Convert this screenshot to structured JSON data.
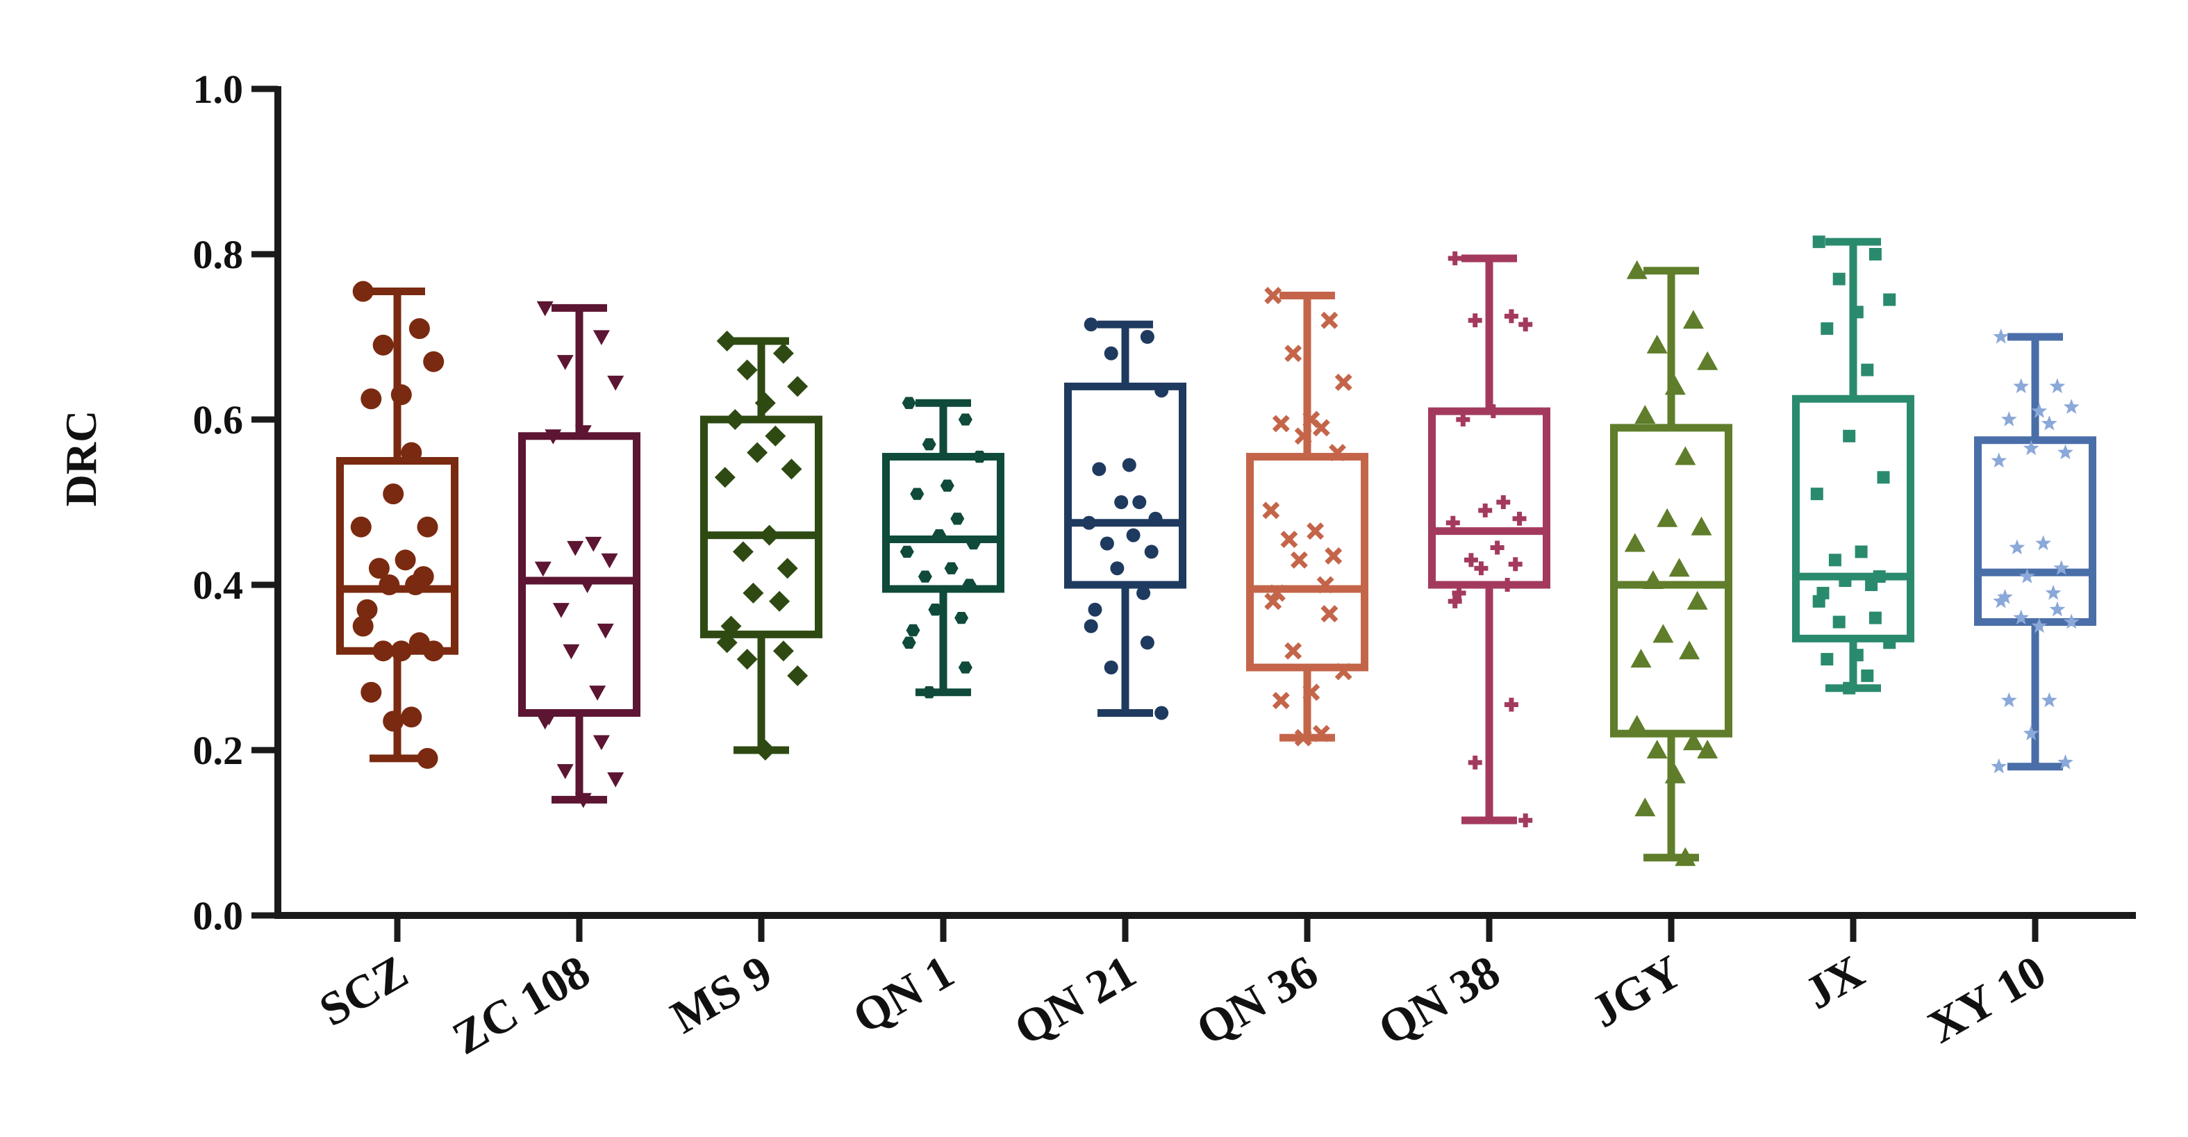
{
  "chart_data": {
    "type": "box",
    "ylabel": "DRC",
    "xlabel": "",
    "ylim": [
      0,
      1.0
    ],
    "yticks": [
      "0.0",
      "0.2",
      "0.4",
      "0.6",
      "0.8",
      "1.0"
    ],
    "ytick_values": [
      0.0,
      0.2,
      0.4,
      0.6,
      0.8,
      1.0
    ],
    "grid": false,
    "categories": [
      "SCZ",
      "ZC 108",
      "MS 9",
      "QN 1",
      "QN 21",
      "QN 36",
      "QN 38",
      "JGY",
      "JX",
      "XY 10"
    ],
    "series": [
      {
        "marker": "circle",
        "color": "#7a2a10",
        "min": 0.19,
        "q1": 0.32,
        "median": 0.395,
        "q3": 0.55,
        "max": 0.755,
        "points": [
          0.755,
          0.71,
          0.69,
          0.67,
          0.63,
          0.625,
          0.56,
          0.51,
          0.47,
          0.47,
          0.43,
          0.42,
          0.41,
          0.4,
          0.4,
          0.37,
          0.35,
          0.33,
          0.32,
          0.32,
          0.32,
          0.27,
          0.24,
          0.235,
          0.19
        ]
      },
      {
        "marker": "triangle-down",
        "color": "#5c1532",
        "min": 0.14,
        "q1": 0.245,
        "median": 0.405,
        "q3": 0.58,
        "max": 0.735,
        "points": [
          0.735,
          0.7,
          0.67,
          0.645,
          0.585,
          0.58,
          0.45,
          0.445,
          0.43,
          0.42,
          0.4,
          0.37,
          0.345,
          0.32,
          0.27,
          0.24,
          0.235,
          0.21,
          0.175,
          0.165,
          0.14
        ]
      },
      {
        "marker": "diamond",
        "color": "#2e4a12",
        "min": 0.2,
        "q1": 0.34,
        "median": 0.46,
        "q3": 0.6,
        "max": 0.695,
        "points": [
          0.695,
          0.68,
          0.66,
          0.64,
          0.62,
          0.6,
          0.58,
          0.56,
          0.54,
          0.53,
          0.46,
          0.44,
          0.42,
          0.39,
          0.38,
          0.35,
          0.33,
          0.32,
          0.31,
          0.29,
          0.2
        ]
      },
      {
        "marker": "hexagon",
        "color": "#0f4a3a",
        "min": 0.27,
        "q1": 0.395,
        "median": 0.455,
        "q3": 0.555,
        "max": 0.62,
        "points": [
          0.62,
          0.6,
          0.57,
          0.555,
          0.52,
          0.51,
          0.48,
          0.46,
          0.45,
          0.44,
          0.42,
          0.41,
          0.4,
          0.37,
          0.36,
          0.345,
          0.33,
          0.3,
          0.27
        ]
      },
      {
        "marker": "circle-small",
        "color": "#1f3a5f",
        "min": 0.245,
        "q1": 0.4,
        "median": 0.475,
        "q3": 0.64,
        "max": 0.715,
        "points": [
          0.715,
          0.7,
          0.68,
          0.635,
          0.545,
          0.54,
          0.5,
          0.5,
          0.48,
          0.475,
          0.46,
          0.45,
          0.44,
          0.42,
          0.39,
          0.37,
          0.35,
          0.33,
          0.3,
          0.245
        ]
      },
      {
        "marker": "x",
        "color": "#c4654a",
        "min": 0.215,
        "q1": 0.3,
        "median": 0.395,
        "q3": 0.555,
        "max": 0.75,
        "points": [
          0.75,
          0.72,
          0.68,
          0.645,
          0.6,
          0.595,
          0.59,
          0.58,
          0.56,
          0.49,
          0.465,
          0.455,
          0.435,
          0.43,
          0.4,
          0.39,
          0.38,
          0.365,
          0.32,
          0.295,
          0.27,
          0.26,
          0.22,
          0.215
        ]
      },
      {
        "marker": "plus",
        "color": "#a33a5e",
        "min": 0.115,
        "q1": 0.4,
        "median": 0.465,
        "q3": 0.61,
        "max": 0.795,
        "points": [
          0.795,
          0.725,
          0.72,
          0.715,
          0.61,
          0.6,
          0.5,
          0.49,
          0.48,
          0.475,
          0.445,
          0.43,
          0.425,
          0.42,
          0.4,
          0.39,
          0.38,
          0.255,
          0.185,
          0.115
        ]
      },
      {
        "marker": "triangle-up",
        "color": "#5f7d2a",
        "min": 0.07,
        "q1": 0.22,
        "median": 0.4,
        "q3": 0.59,
        "max": 0.78,
        "points": [
          0.78,
          0.72,
          0.69,
          0.67,
          0.64,
          0.605,
          0.555,
          0.48,
          0.47,
          0.45,
          0.42,
          0.405,
          0.38,
          0.34,
          0.32,
          0.31,
          0.23,
          0.21,
          0.2,
          0.2,
          0.17,
          0.13,
          0.07
        ]
      },
      {
        "marker": "square",
        "color": "#2a8a6e",
        "min": 0.275,
        "q1": 0.335,
        "median": 0.41,
        "q3": 0.625,
        "max": 0.815,
        "points": [
          0.815,
          0.8,
          0.77,
          0.745,
          0.73,
          0.71,
          0.66,
          0.58,
          0.53,
          0.51,
          0.44,
          0.43,
          0.41,
          0.405,
          0.4,
          0.39,
          0.38,
          0.36,
          0.355,
          0.33,
          0.315,
          0.31,
          0.29,
          0.275
        ]
      },
      {
        "marker": "star",
        "color": "#8aa8d8",
        "min": 0.18,
        "q1": 0.355,
        "median": 0.415,
        "q3": 0.575,
        "max": 0.7,
        "points": [
          0.7,
          0.64,
          0.64,
          0.615,
          0.61,
          0.6,
          0.595,
          0.565,
          0.56,
          0.55,
          0.45,
          0.445,
          0.42,
          0.41,
          0.39,
          0.385,
          0.38,
          0.37,
          0.36,
          0.355,
          0.35,
          0.26,
          0.26,
          0.22,
          0.185,
          0.18
        ]
      }
    ]
  },
  "box_colors": [
    "#7a2a10",
    "#5c1532",
    "#2e4a12",
    "#0f4a3a",
    "#1f3a5f",
    "#c4654a",
    "#a33a5e",
    "#5f7d2a",
    "#2a8a6e",
    "#4a6ea8"
  ]
}
